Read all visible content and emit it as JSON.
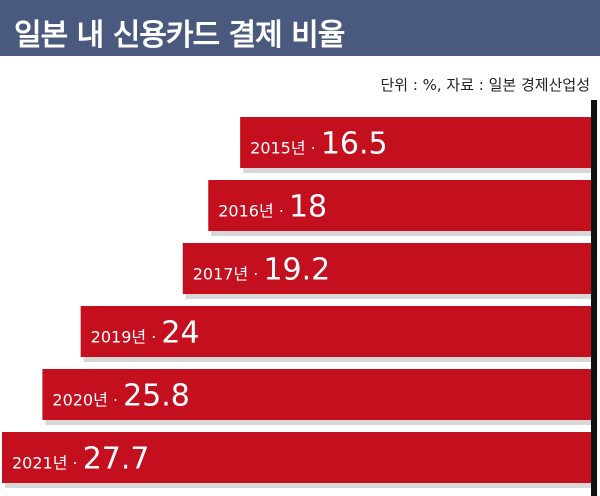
{
  "header": {
    "title": "일본 내 신용카드 결제 비율",
    "source_note": "단위 : %, 자료 : 일본 경제산업성"
  },
  "colors": {
    "title_bg": "#4a5a7e",
    "bar": "#c40f1f",
    "bar_shadow": "#d7d7d7",
    "axis": "#111111"
  },
  "chart_data": {
    "type": "bar",
    "orientation": "horizontal",
    "title": "일본 내 신용카드 결제 비율",
    "unit_note": "단위 : %, 자료 : 일본 경제산업성",
    "categories": [
      "2015년",
      "2016년",
      "2017년",
      "2019년",
      "2020년",
      "2021년"
    ],
    "values": [
      16.5,
      18,
      19.2,
      24,
      25.8,
      27.7
    ],
    "value_labels": [
      "16.5",
      "18",
      "19.2",
      "24",
      "25.8",
      "27.7"
    ],
    "xlabel": "",
    "ylabel": "",
    "grid": false,
    "legend": "none"
  }
}
